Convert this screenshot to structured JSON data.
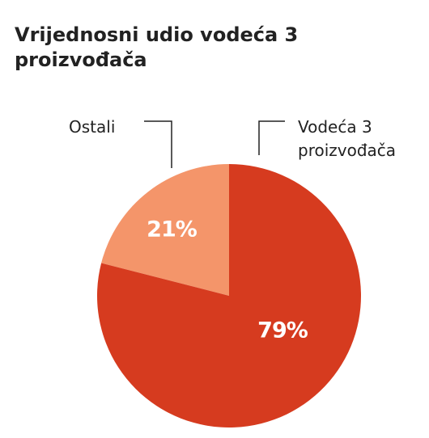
{
  "chart_data": {
    "type": "pie",
    "title": "Vrijednosni udio vodeća 3 proizvođača",
    "categories": [
      "Vodeća 3 proizvođača",
      "Ostali"
    ],
    "values": [
      79,
      21
    ],
    "value_labels": [
      "79%",
      "21%"
    ],
    "colors": [
      "#d63b1f",
      "#f4956a"
    ]
  }
}
